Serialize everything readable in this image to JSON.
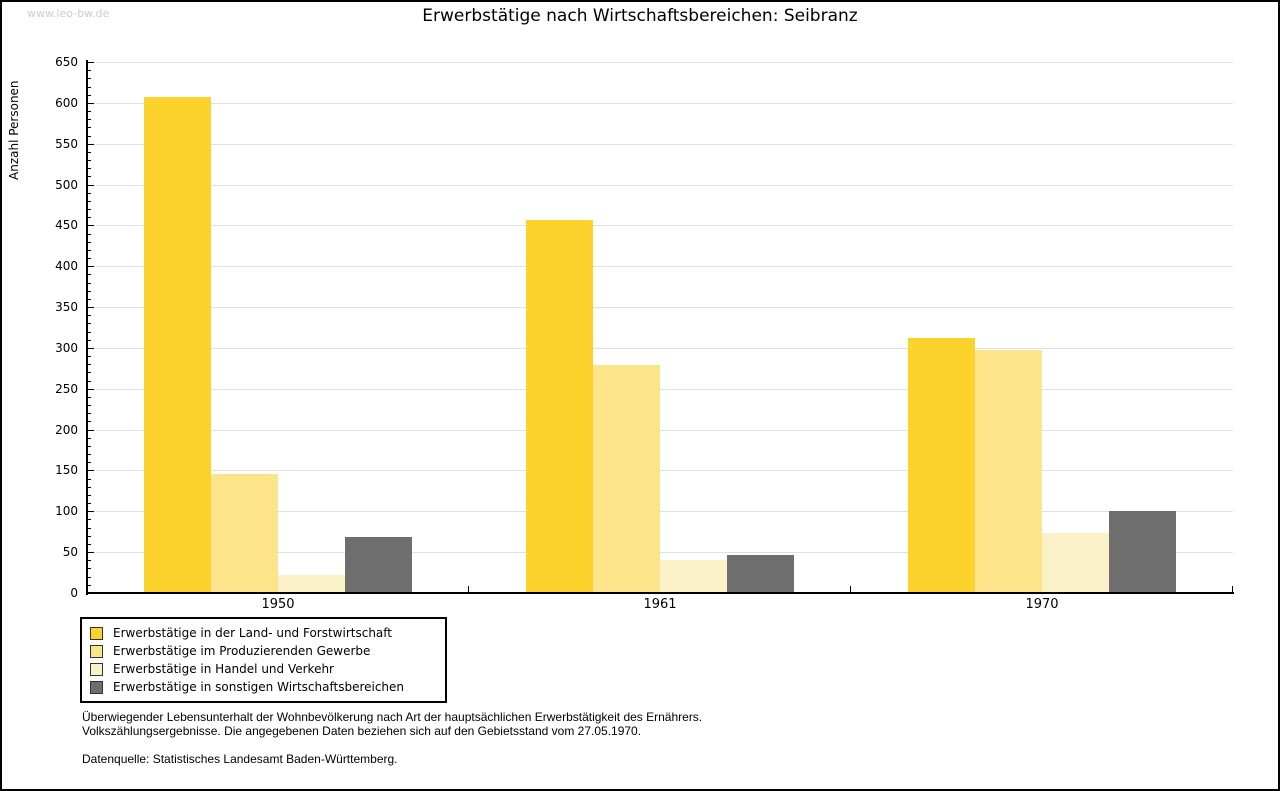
{
  "watermark": "www.leo-bw.de",
  "chart_data": {
    "type": "bar",
    "title": "Erwerbstätige nach Wirtschaftsbereichen: Seibranz",
    "xlabel": "",
    "ylabel": "Anzahl Personen",
    "categories": [
      "1950",
      "1961",
      "1970"
    ],
    "series": [
      {
        "name": "Erwerbstätige in der Land- und Forstwirtschaft",
        "color": "#FCD32C",
        "values": [
          607,
          457,
          312
        ]
      },
      {
        "name": "Erwerbstätige im Produzierenden Gewerbe",
        "color": "#FBE489",
        "values": [
          146,
          279,
          297
        ]
      },
      {
        "name": "Erwerbstätige in Handel und Verkehr",
        "color": "#FAF1C6",
        "values": [
          22,
          41,
          74
        ]
      },
      {
        "name": "Erwerbstätige in sonstigen Wirtschaftsbereichen",
        "color": "#6E6E6E",
        "values": [
          68,
          47,
          100
        ]
      }
    ],
    "ylim": [
      0,
      650
    ],
    "y_ticks": [
      0,
      50,
      100,
      150,
      200,
      250,
      300,
      350,
      400,
      450,
      500,
      550,
      600,
      650
    ],
    "minor_tick_step": 10,
    "grid": true,
    "legend_position": "bottom-left"
  },
  "footer": {
    "line1": "Überwiegender Lebensunterhalt der Wohnbevölkerung nach Art der hauptsächlichen Erwerbstätigkeit des Ernährers.",
    "line2": "Volkszählungsergebnisse. Die angegebenen Daten beziehen sich auf den Gebietsstand vom 27.05.1970.",
    "source": "Datenquelle: Statistisches Landesamt Baden-Württemberg."
  }
}
